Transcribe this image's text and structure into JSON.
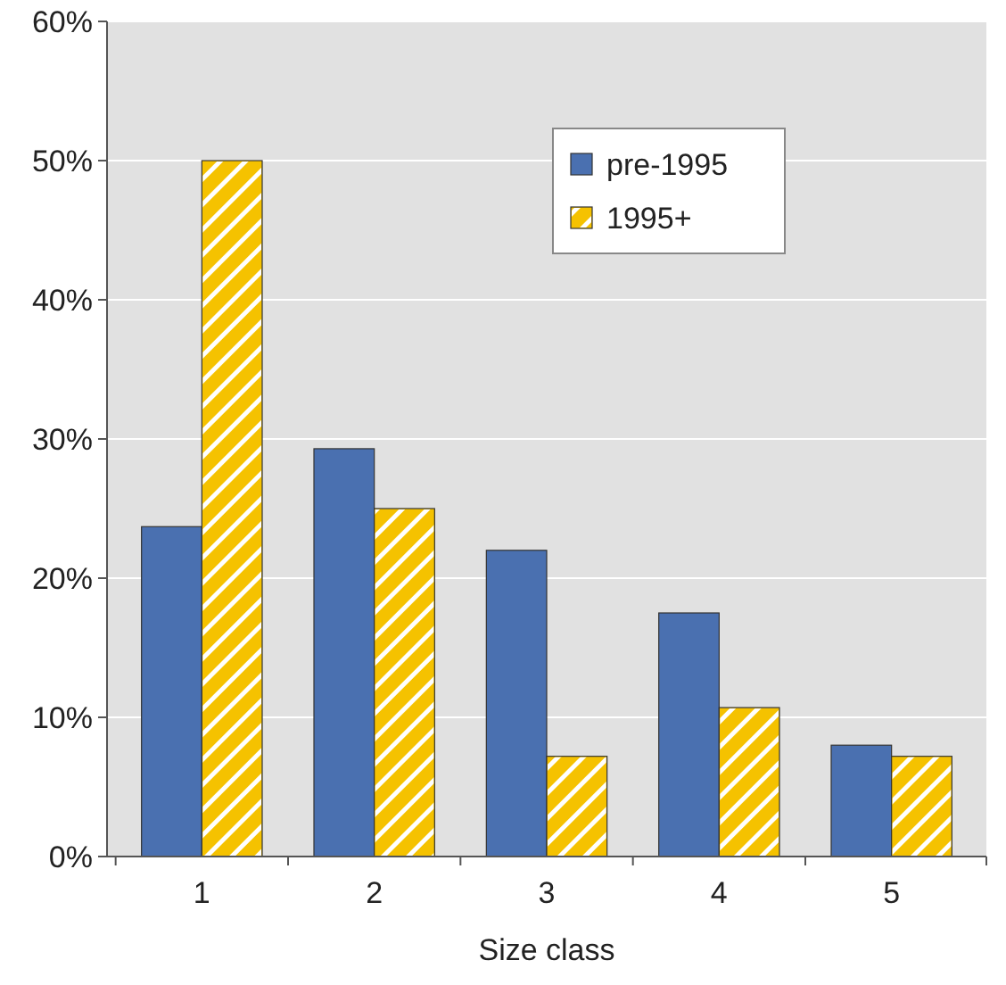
{
  "chart_data": {
    "type": "bar",
    "xlabel": "Size class",
    "categories": [
      "1",
      "2",
      "3",
      "4",
      "5"
    ],
    "series": [
      {
        "name": "pre-1995",
        "color": "#4a70b0",
        "values": [
          23.7,
          29.3,
          22.0,
          17.5,
          8.0
        ]
      },
      {
        "name": "1995+",
        "color": "#f5c200",
        "values": [
          50.0,
          25.0,
          7.2,
          10.7,
          7.2
        ]
      }
    ],
    "ylim": [
      0,
      60
    ],
    "yticks": [
      {
        "value": 0,
        "label": "0%"
      },
      {
        "value": 10,
        "label": "10%"
      },
      {
        "value": 20,
        "label": "20%"
      },
      {
        "value": 30,
        "label": "30%"
      },
      {
        "value": 40,
        "label": "40%"
      },
      {
        "value": 50,
        "label": "50%"
      },
      {
        "value": 60,
        "label": "60%"
      }
    ],
    "grid": "y",
    "legend": "top right"
  }
}
